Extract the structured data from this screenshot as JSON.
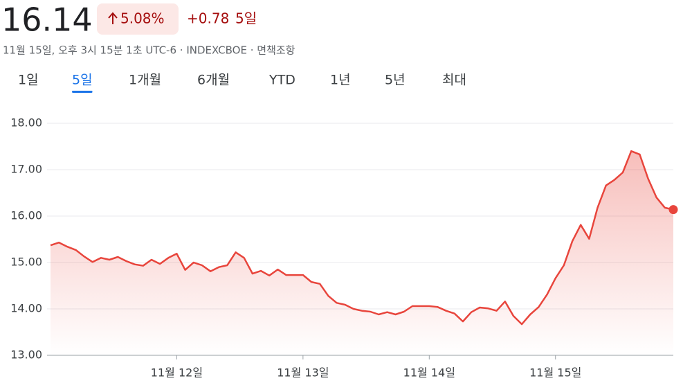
{
  "header": {
    "price": "16.14",
    "change_percent": "5.08%",
    "change": "+0.78",
    "period": "5일",
    "timestamp": "11월 15일, 오후 3시 15분 1초 UTC-6 · INDEXCBOE · 면책조항"
  },
  "tabs": [
    "1일",
    "5일",
    "1개월",
    "6개월",
    "YTD",
    "1년",
    "5년",
    "최대"
  ],
  "selected_tab": 1,
  "chart_data": {
    "type": "area-line",
    "color": "#e8453c",
    "grid": true,
    "categories": [
      null,
      null,
      null,
      null,
      null,
      null,
      null,
      null,
      null,
      null,
      null,
      null,
      null,
      null,
      null,
      "11월 12일",
      null,
      null,
      null,
      null,
      null,
      null,
      null,
      null,
      null,
      null,
      null,
      null,
      null,
      null,
      "11월 13일",
      null,
      null,
      null,
      null,
      null,
      null,
      null,
      null,
      null,
      null,
      null,
      null,
      null,
      null,
      "11월 14일",
      null,
      null,
      null,
      null,
      null,
      null,
      null,
      null,
      null,
      null,
      null,
      null,
      null,
      null,
      "11월 15일",
      null,
      null,
      null,
      null,
      null,
      null,
      null,
      null,
      null,
      null,
      null,
      null,
      null,
      null
    ],
    "values": [
      15.37,
      15.43,
      15.34,
      15.27,
      15.13,
      15.01,
      15.1,
      15.06,
      15.12,
      15.03,
      14.96,
      14.93,
      15.06,
      14.97,
      15.1,
      15.19,
      14.84,
      15.0,
      14.94,
      14.81,
      14.9,
      14.94,
      15.22,
      15.1,
      14.76,
      14.82,
      14.72,
      14.85,
      14.73,
      14.73,
      14.73,
      14.58,
      14.54,
      14.28,
      14.13,
      14.09,
      14.0,
      13.96,
      13.94,
      13.88,
      13.93,
      13.88,
      13.94,
      14.06,
      14.06,
      14.06,
      14.04,
      13.96,
      13.9,
      13.73,
      13.93,
      14.03,
      14.01,
      13.96,
      14.16,
      13.85,
      13.67,
      13.88,
      14.04,
      14.31,
      14.66,
      14.94,
      15.46,
      15.81,
      15.51,
      16.18,
      16.66,
      16.78,
      16.94,
      17.4,
      17.33,
      16.81,
      16.4,
      16.18,
      16.14
    ],
    "ylim": [
      13,
      18
    ],
    "yticks": [
      {
        "value": 13,
        "label": "13.00"
      },
      {
        "value": 14,
        "label": "14.00"
      },
      {
        "value": 15,
        "label": "15.00"
      },
      {
        "value": 16,
        "label": "16.00"
      },
      {
        "value": 17,
        "label": "17.00"
      },
      {
        "value": 18,
        "label": "18.00"
      }
    ]
  }
}
